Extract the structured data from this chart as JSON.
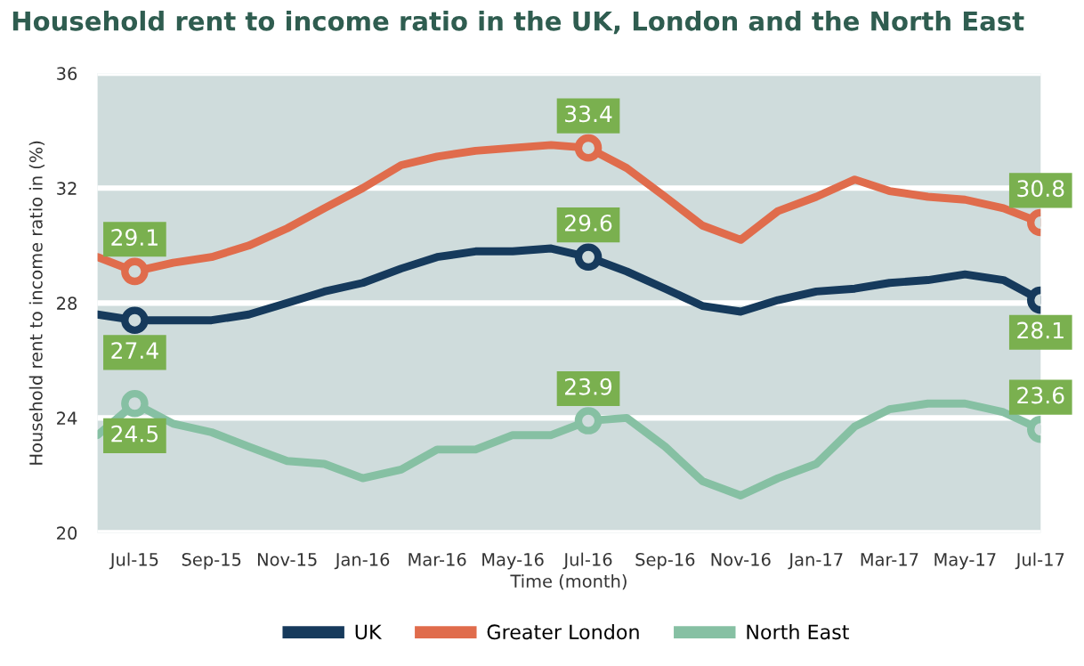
{
  "chart_data": {
    "type": "line",
    "title": "Household rent to income ratio in the UK, London and the North East",
    "xlabel": "Time (month)",
    "ylabel": "Household rent to income ratio in (%)",
    "x": [
      "2015-06",
      "2015-07",
      "2015-08",
      "2015-09",
      "2015-10",
      "2015-11",
      "2015-12",
      "2016-01",
      "2016-02",
      "2016-03",
      "2016-04",
      "2016-05",
      "2016-06",
      "2016-07",
      "2016-08",
      "2016-09",
      "2016-10",
      "2016-11",
      "2016-12",
      "2017-01",
      "2017-02",
      "2017-03",
      "2017-04",
      "2017-05",
      "2017-06",
      "2017-07"
    ],
    "series": [
      {
        "name": "UK",
        "color": "#163a5c",
        "values": [
          27.6,
          27.4,
          27.4,
          27.4,
          27.6,
          28.0,
          28.4,
          28.7,
          29.2,
          29.6,
          29.8,
          29.8,
          29.9,
          29.6,
          29.1,
          28.5,
          27.9,
          27.7,
          28.1,
          28.4,
          28.5,
          28.7,
          28.8,
          29.0,
          28.8,
          28.1
        ],
        "value_labels": [
          null,
          "27.4",
          null,
          null,
          null,
          null,
          null,
          null,
          null,
          null,
          null,
          null,
          null,
          "29.6",
          null,
          null,
          null,
          null,
          null,
          null,
          null,
          null,
          null,
          null,
          null,
          "28.1"
        ]
      },
      {
        "name": "Greater London",
        "color": "#e06c4c",
        "values": [
          29.6,
          29.1,
          29.4,
          29.6,
          30.0,
          30.6,
          31.3,
          32.0,
          32.8,
          33.1,
          33.3,
          33.4,
          33.5,
          33.4,
          32.7,
          31.7,
          30.7,
          30.2,
          31.2,
          31.7,
          32.3,
          31.9,
          31.7,
          31.6,
          31.3,
          30.8
        ],
        "value_labels": [
          null,
          "29.1",
          null,
          null,
          null,
          null,
          null,
          null,
          null,
          null,
          null,
          null,
          null,
          "33.4",
          null,
          null,
          null,
          null,
          null,
          null,
          null,
          null,
          null,
          null,
          null,
          "30.8"
        ]
      },
      {
        "name": "North East",
        "color": "#86c0a3",
        "values": [
          23.4,
          24.5,
          23.8,
          23.5,
          23.0,
          22.5,
          22.4,
          21.9,
          22.2,
          22.9,
          22.9,
          23.4,
          23.4,
          23.9,
          24.0,
          23.0,
          21.8,
          21.3,
          21.9,
          22.4,
          23.7,
          24.3,
          24.5,
          24.5,
          24.2,
          23.6
        ],
        "value_labels": [
          null,
          "24.5",
          null,
          null,
          null,
          null,
          null,
          null,
          null,
          null,
          null,
          null,
          null,
          "23.9",
          null,
          null,
          null,
          null,
          null,
          null,
          null,
          null,
          null,
          null,
          null,
          "23.6"
        ]
      }
    ],
    "xlim": [
      "2015-06",
      "2017-07"
    ],
    "xticks": [
      {
        "value": "2015-07",
        "label": "Jul-15"
      },
      {
        "value": "2015-09",
        "label": "Sep-15"
      },
      {
        "value": "2015-11",
        "label": "Nov-15"
      },
      {
        "value": "2016-01",
        "label": "Jan-16"
      },
      {
        "value": "2016-03",
        "label": "Mar-16"
      },
      {
        "value": "2016-05",
        "label": "May-16"
      },
      {
        "value": "2016-07",
        "label": "Jul-16"
      },
      {
        "value": "2016-09",
        "label": "Sep-16"
      },
      {
        "value": "2016-11",
        "label": "Nov-16"
      },
      {
        "value": "2017-01",
        "label": "Jan-17"
      },
      {
        "value": "2017-03",
        "label": "Mar-17"
      },
      {
        "value": "2017-05",
        "label": "May-17"
      },
      {
        "value": "2017-07",
        "label": "Jul-17"
      }
    ],
    "ylim": [
      20,
      36
    ],
    "yticks": [
      20,
      24,
      28,
      32,
      36
    ],
    "grid": "y",
    "legend": "bottom",
    "line_style": "solid"
  }
}
